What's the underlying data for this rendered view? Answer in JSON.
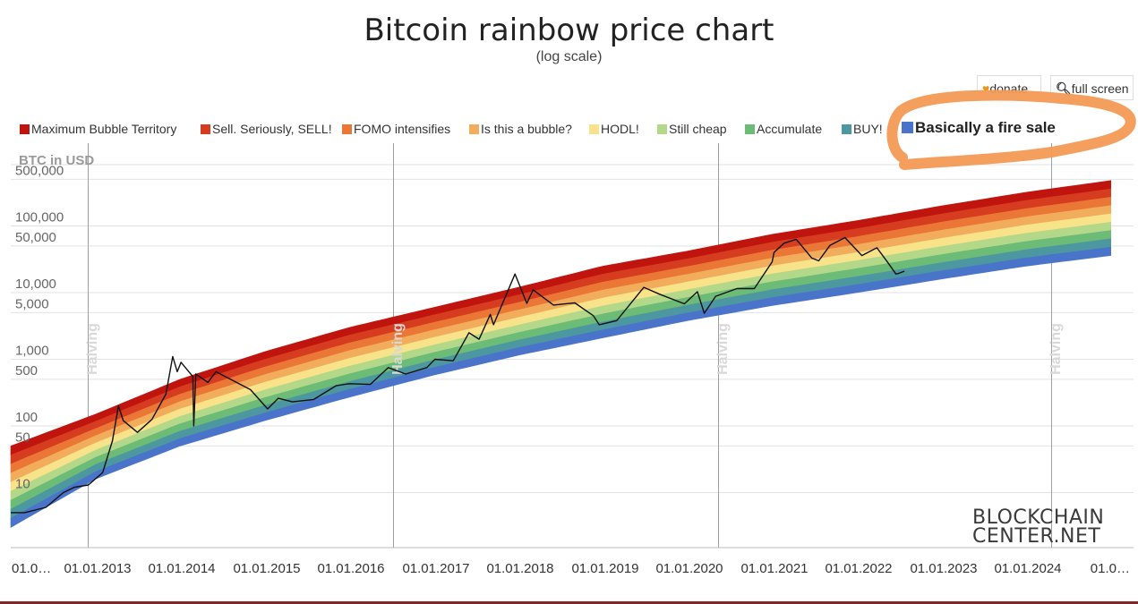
{
  "title": "Bitcoin rainbow price chart",
  "subtitle": "(log scale)",
  "buttons": {
    "donate": "donate",
    "fullscreen": "full screen"
  },
  "logo": {
    "line1": "BLOCKCHAIN",
    "line2": "CENTER.NET"
  },
  "chart_data": {
    "type": "area",
    "y_scale": "log",
    "ylabel": "BTC in USD",
    "y_ticks": [
      10,
      50,
      100,
      500,
      1000,
      5000,
      10000,
      50000,
      100000,
      500000
    ],
    "y_tick_labels": [
      "10",
      "50",
      "100",
      "500",
      "1,000",
      "5,000",
      "10,000",
      "50,000",
      "100,000",
      "500,000"
    ],
    "x_tick_labels": [
      "01.0…",
      "01.01.2013",
      "01.01.2014",
      "01.01.2015",
      "01.01.2016",
      "01.01.2017",
      "01.01.2018",
      "01.01.2019",
      "01.01.2020",
      "01.01.2021",
      "01.01.2022",
      "01.01.2023",
      "01.01.2024",
      "01.0…"
    ],
    "x_range": [
      "2012-01-01",
      "2024-12-31"
    ],
    "halvings": [
      {
        "date": "2012-11-28",
        "label": "Halving"
      },
      {
        "date": "2016-07-09",
        "label": "Halving"
      },
      {
        "date": "2020-05-11",
        "label": "Halving"
      },
      {
        "date": "2024-04-20",
        "label": "Halving"
      }
    ],
    "bands": [
      {
        "name": "Maximum Bubble Territory",
        "color": "#c0140f"
      },
      {
        "name": "Sell. Seriously, SELL!",
        "color": "#d63c1f"
      },
      {
        "name": "FOMO intensifies",
        "color": "#ea7736"
      },
      {
        "name": "Is this a bubble?",
        "color": "#f2ad5c"
      },
      {
        "name": "HODL!",
        "color": "#f8e38a"
      },
      {
        "name": "Still cheap",
        "color": "#b3d889"
      },
      {
        "name": "Accumulate",
        "color": "#6cbb76"
      },
      {
        "name": "BUY!",
        "color": "#4d97a0"
      },
      {
        "name": "Basically a fire sale",
        "color": "#4a74c9",
        "highlighted": true
      }
    ],
    "band_bounds_sample": [
      {
        "date": "2012-01-01",
        "top": 50,
        "bottom": 3
      },
      {
        "date": "2013-01-01",
        "top": 150,
        "bottom": 16
      },
      {
        "date": "2014-01-01",
        "top": 500,
        "bottom": 50
      },
      {
        "date": "2015-01-01",
        "top": 1300,
        "bottom": 120
      },
      {
        "date": "2016-01-01",
        "top": 3000,
        "bottom": 270
      },
      {
        "date": "2017-01-01",
        "top": 6000,
        "bottom": 580
      },
      {
        "date": "2018-01-01",
        "top": 12000,
        "bottom": 1150
      },
      {
        "date": "2019-01-01",
        "top": 25000,
        "bottom": 2100
      },
      {
        "date": "2020-01-01",
        "top": 42000,
        "bottom": 3800
      },
      {
        "date": "2021-01-01",
        "top": 75000,
        "bottom": 6400
      },
      {
        "date": "2022-01-01",
        "top": 120000,
        "bottom": 10000
      },
      {
        "date": "2023-01-01",
        "top": 200000,
        "bottom": 16000
      },
      {
        "date": "2024-01-01",
        "top": 320000,
        "bottom": 25000
      },
      {
        "date": "2025-01-01",
        "top": 480000,
        "bottom": 36000
      }
    ],
    "price": [
      [
        "2012-01-01",
        5
      ],
      [
        "2012-03-01",
        5
      ],
      [
        "2012-06-01",
        6
      ],
      [
        "2012-08-15",
        10
      ],
      [
        "2012-10-01",
        12
      ],
      [
        "2012-12-01",
        13
      ],
      [
        "2013-02-01",
        20
      ],
      [
        "2013-03-15",
        60
      ],
      [
        "2013-04-10",
        200
      ],
      [
        "2013-05-01",
        120
      ],
      [
        "2013-07-01",
        80
      ],
      [
        "2013-09-01",
        125
      ],
      [
        "2013-11-01",
        300
      ],
      [
        "2013-11-30",
        1100
      ],
      [
        "2013-12-20",
        650
      ],
      [
        "2014-01-05",
        900
      ],
      [
        "2014-02-25",
        550
      ],
      [
        "2014-03-01",
        100
      ],
      [
        "2014-03-10",
        600
      ],
      [
        "2014-05-01",
        450
      ],
      [
        "2014-06-05",
        650
      ],
      [
        "2014-09-01",
        450
      ],
      [
        "2014-11-01",
        350
      ],
      [
        "2015-01-14",
        180
      ],
      [
        "2015-03-01",
        260
      ],
      [
        "2015-05-01",
        230
      ],
      [
        "2015-08-01",
        250
      ],
      [
        "2015-11-05",
        400
      ],
      [
        "2016-01-01",
        430
      ],
      [
        "2016-04-01",
        420
      ],
      [
        "2016-06-18",
        750
      ],
      [
        "2016-09-01",
        600
      ],
      [
        "2016-12-01",
        750
      ],
      [
        "2017-01-05",
        1000
      ],
      [
        "2017-03-25",
        950
      ],
      [
        "2017-06-01",
        2500
      ],
      [
        "2017-07-15",
        2000
      ],
      [
        "2017-09-01",
        4700
      ],
      [
        "2017-09-15",
        3300
      ],
      [
        "2017-12-17",
        19000
      ],
      [
        "2018-02-06",
        6900
      ],
      [
        "2018-03-05",
        11000
      ],
      [
        "2018-06-01",
        6500
      ],
      [
        "2018-09-01",
        7000
      ],
      [
        "2018-11-20",
        4500
      ],
      [
        "2018-12-15",
        3300
      ],
      [
        "2019-03-01",
        3800
      ],
      [
        "2019-06-26",
        12000
      ],
      [
        "2019-09-01",
        9500
      ],
      [
        "2019-12-18",
        6800
      ],
      [
        "2020-02-12",
        10300
      ],
      [
        "2020-03-13",
        4900
      ],
      [
        "2020-05-01",
        8800
      ],
      [
        "2020-08-01",
        11500
      ],
      [
        "2020-10-15",
        11500
      ],
      [
        "2020-12-31",
        29000
      ],
      [
        "2021-01-08",
        40000
      ],
      [
        "2021-02-20",
        55000
      ],
      [
        "2021-04-14",
        63000
      ],
      [
        "2021-06-20",
        33000
      ],
      [
        "2021-07-20",
        30000
      ],
      [
        "2021-09-06",
        51000
      ],
      [
        "2021-11-10",
        67000
      ],
      [
        "2022-01-22",
        36000
      ],
      [
        "2022-03-28",
        47000
      ],
      [
        "2022-05-12",
        29000
      ],
      [
        "2022-06-18",
        19000
      ],
      [
        "2022-07-01",
        19500
      ],
      [
        "2022-07-25",
        21000
      ]
    ]
  }
}
